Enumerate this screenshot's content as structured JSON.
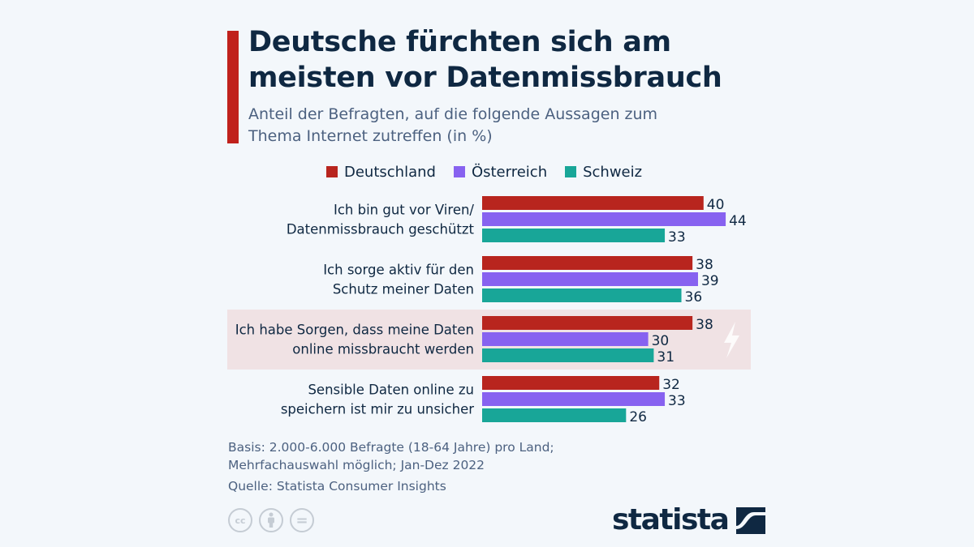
{
  "header": {
    "title": "Deutsche fürchten sich am meisten vor Datenmissbrauch",
    "subtitle": "Anteil der Befragten, auf die folgende Aussagen zum Thema Internet zutreffen (in %)",
    "accent_color": "#c0211c"
  },
  "legend": [
    {
      "label": "Deutschland",
      "color": "#b8251e"
    },
    {
      "label": "Österreich",
      "color": "#8762f0"
    },
    {
      "label": "Schweiz",
      "color": "#18a698"
    }
  ],
  "chart_data": {
    "type": "bar",
    "orientation": "horizontal",
    "title": "Deutsche fürchten sich am meisten vor Datenmissbrauch",
    "subtitle": "Anteil der Befragten, auf die folgende Aussagen zum Thema Internet zutreffen (in %)",
    "xlabel": "",
    "ylabel": "",
    "xlim": [
      0,
      44
    ],
    "grid": false,
    "legend_position": "top",
    "categories": [
      [
        "Ich bin gut vor Viren/",
        "Datenmissbrauch geschützt"
      ],
      [
        "Ich sorge aktiv für den",
        "Schutz meiner Daten"
      ],
      [
        "Ich habe Sorgen, dass meine Daten",
        "online missbraucht werden"
      ],
      [
        "Sensible Daten online zu",
        "speichern ist mir zu unsicher"
      ]
    ],
    "highlighted_category_index": 2,
    "highlight_color": "#f0e2e4",
    "highlight_icon": "lightning-icon",
    "series": [
      {
        "name": "Deutschland",
        "color": "#b8251e",
        "values": [
          40,
          38,
          38,
          32
        ]
      },
      {
        "name": "Österreich",
        "color": "#8762f0",
        "values": [
          44,
          39,
          30,
          33
        ]
      },
      {
        "name": "Schweiz",
        "color": "#18a698",
        "values": [
          33,
          36,
          31,
          26
        ]
      }
    ]
  },
  "footnote": {
    "basis_line1": "Basis: 2.000-6.000 Befragte (18-64 Jahre) pro Land;",
    "basis_line2": "Mehrfachauswahl möglich; Jan-Dez 2022",
    "source": "Quelle: Statista Consumer Insights"
  },
  "license_icons": [
    {
      "name": "creative-commons-icon",
      "glyph": "cc"
    },
    {
      "name": "attribution-icon",
      "glyph": ""
    },
    {
      "name": "no-derivatives-icon",
      "glyph": "="
    }
  ],
  "brand": {
    "logo_text": "statista"
  }
}
